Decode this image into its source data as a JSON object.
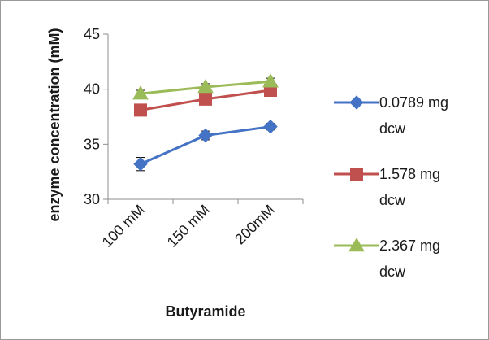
{
  "chart_data": {
    "type": "line",
    "xlabel": "Butyramide",
    "ylabel": "enzyme concentration (mM)",
    "categories": [
      "100 mM",
      "150 mM",
      "200mM"
    ],
    "ylim": [
      30,
      45
    ],
    "yticks": [
      "30",
      "35",
      "40",
      "45"
    ],
    "grid": false,
    "legend_position": "right",
    "series": [
      {
        "name": "0.0789 mg dcw",
        "name_lines": [
          "0.0789 mg",
          "dcw"
        ],
        "values": [
          33.2,
          35.8,
          36.6
        ],
        "errors": [
          0.6,
          0.4,
          0.3
        ],
        "color": "#4472c4",
        "marker": "diamond"
      },
      {
        "name": "1.578 mg dcw",
        "name_lines": [
          "1.578 mg",
          "dcw"
        ],
        "values": [
          38.1,
          39.1,
          39.9
        ],
        "errors": [
          0.3,
          0.3,
          0.3
        ],
        "color": "#c0504d",
        "marker": "square"
      },
      {
        "name": "2.367 mg dcw",
        "name_lines": [
          "2.367 mg",
          "dcw"
        ],
        "values": [
          39.6,
          40.2,
          40.7
        ],
        "errors": [
          0.3,
          0.3,
          0.3
        ],
        "color": "#9bbb59",
        "marker": "triangle"
      }
    ]
  }
}
